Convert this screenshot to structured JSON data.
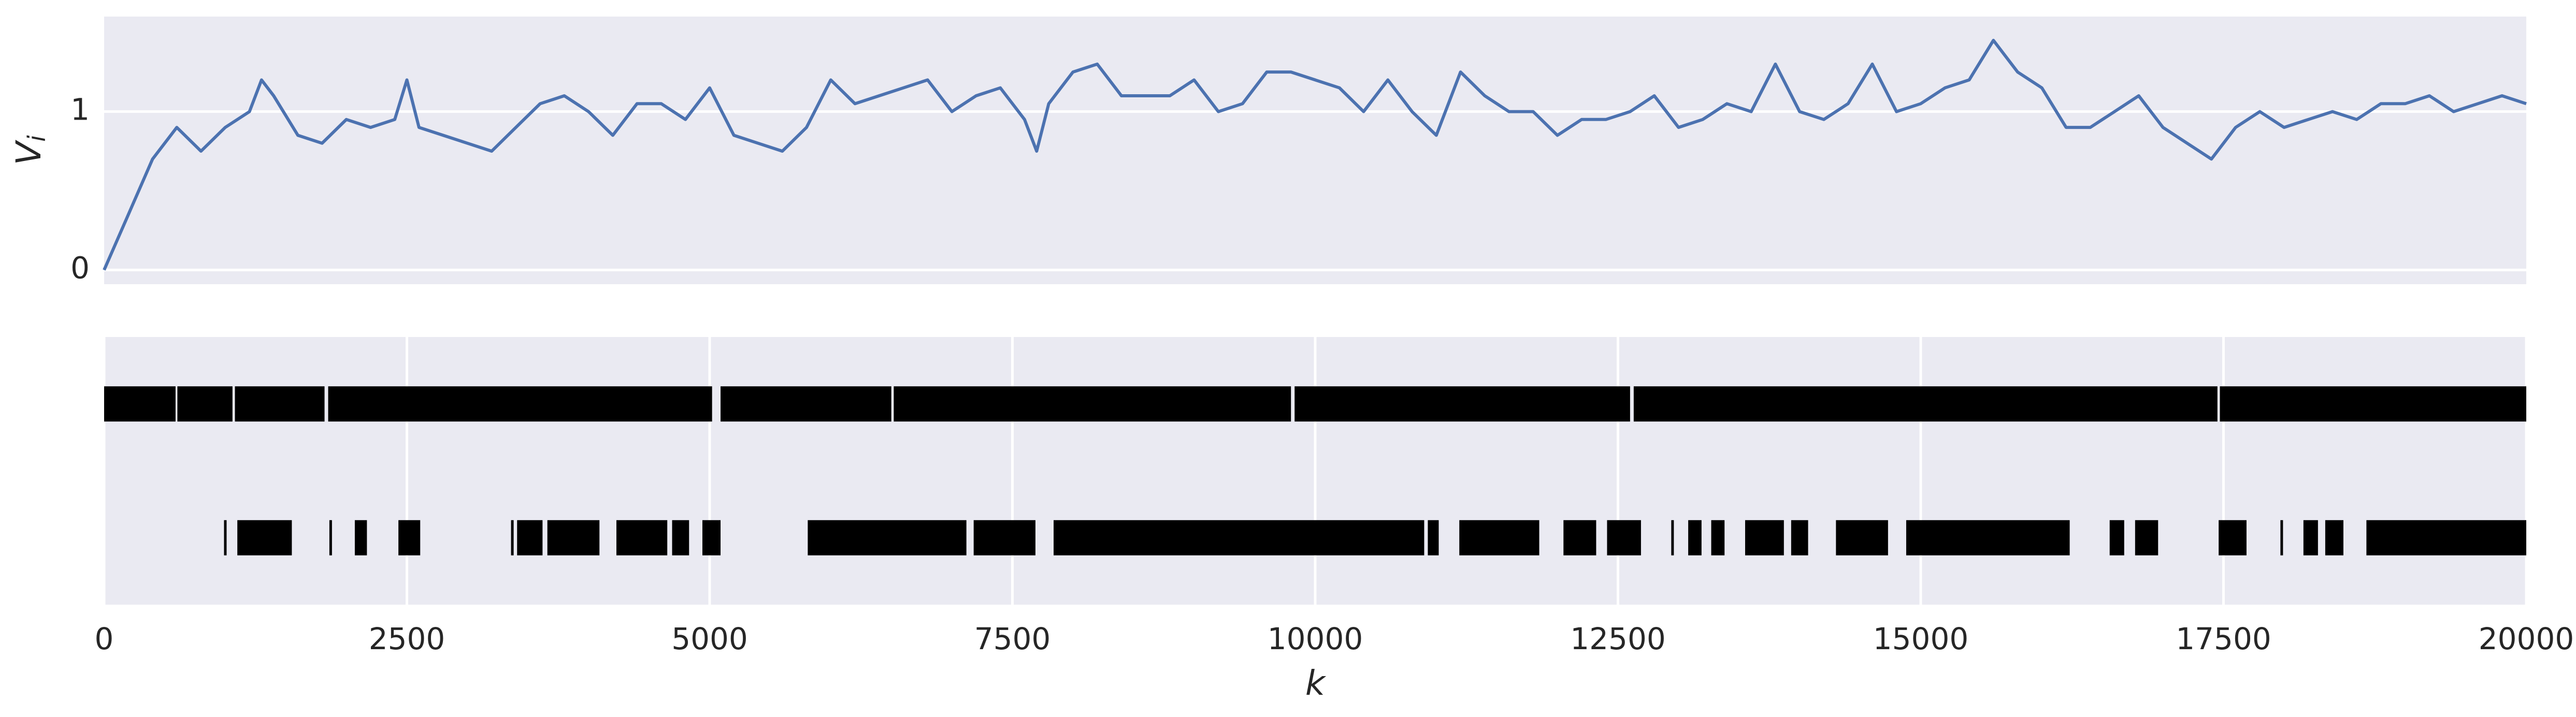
{
  "chart_data": [
    {
      "type": "line",
      "ylabel": "V",
      "ylabel_subscript": "i",
      "color": "#4c72b0",
      "background": "#eaeaf2",
      "xlim": [
        0,
        20000
      ],
      "ylim": [
        -0.09,
        1.6
      ],
      "yticks": [
        0,
        1
      ],
      "grid": true,
      "x": [
        0,
        200,
        400,
        600,
        800,
        1000,
        1200,
        1300,
        1400,
        1600,
        1800,
        2000,
        2200,
        2400,
        2500,
        2600,
        2800,
        3000,
        3200,
        3400,
        3600,
        3800,
        4000,
        4200,
        4400,
        4600,
        4800,
        5000,
        5200,
        5400,
        5600,
        5800,
        6000,
        6200,
        6400,
        6600,
        6800,
        7000,
        7200,
        7400,
        7600,
        7700,
        7800,
        8000,
        8200,
        8400,
        8600,
        8800,
        9000,
        9200,
        9400,
        9600,
        9800,
        10000,
        10200,
        10400,
        10600,
        10800,
        11000,
        11200,
        11400,
        11600,
        11800,
        12000,
        12200,
        12400,
        12600,
        12800,
        13000,
        13200,
        13400,
        13600,
        13800,
        14000,
        14200,
        14400,
        14600,
        14800,
        15000,
        15200,
        15400,
        15600,
        15800,
        16000,
        16200,
        16400,
        16600,
        16800,
        17000,
        17200,
        17400,
        17600,
        17800,
        18000,
        18200,
        18400,
        18600,
        18800,
        19000,
        19200,
        19400,
        19600,
        19800,
        20000
      ],
      "values": [
        0,
        0.35,
        0.7,
        0.9,
        0.75,
        0.9,
        1.0,
        1.2,
        1.1,
        0.85,
        0.8,
        0.95,
        0.9,
        0.95,
        1.2,
        0.9,
        0.85,
        0.8,
        0.75,
        0.9,
        1.05,
        1.1,
        1.0,
        0.85,
        1.05,
        1.05,
        0.95,
        1.15,
        0.85,
        0.8,
        0.75,
        0.9,
        1.2,
        1.05,
        1.1,
        1.15,
        1.2,
        1.0,
        1.1,
        1.15,
        0.95,
        0.75,
        1.05,
        1.25,
        1.3,
        1.1,
        1.1,
        1.1,
        1.2,
        1.0,
        1.05,
        1.25,
        1.25,
        1.2,
        1.15,
        1.0,
        1.2,
        1.0,
        0.85,
        1.25,
        1.1,
        1.0,
        1.0,
        0.85,
        0.95,
        0.95,
        1.0,
        1.1,
        0.9,
        0.95,
        1.05,
        1.0,
        1.3,
        1.0,
        0.95,
        1.05,
        1.3,
        1.0,
        1.05,
        1.15,
        1.2,
        1.45,
        1.25,
        1.15,
        0.9,
        0.9,
        1.0,
        1.1,
        0.9,
        0.8,
        0.7,
        0.9,
        1.0,
        0.9,
        0.95,
        1.0,
        0.95,
        1.05,
        1.05,
        1.1,
        1.0,
        1.05,
        1.1,
        1.05
      ]
    },
    {
      "type": "eventplot",
      "xlabel": "k",
      "color": "#000000",
      "background": "#eaeaf2",
      "xlim": [
        0,
        20000
      ],
      "xticks": [
        0,
        2500,
        5000,
        7500,
        10000,
        12500,
        15000,
        17500,
        20000
      ],
      "grid": true,
      "rows": [
        [
          [
            0,
            590
          ],
          [
            605,
            1060
          ],
          [
            1080,
            1820
          ],
          [
            1850,
            5020
          ],
          [
            5090,
            6500
          ],
          [
            6520,
            9800
          ],
          [
            9830,
            12600
          ],
          [
            12630,
            17450
          ],
          [
            17470,
            20000
          ]
        ],
        [
          [
            990,
            1010
          ],
          [
            1100,
            1550
          ],
          [
            1860,
            1880
          ],
          [
            2070,
            2170
          ],
          [
            2430,
            2610
          ],
          [
            3360,
            3380
          ],
          [
            3410,
            3620
          ],
          [
            3660,
            4090
          ],
          [
            4230,
            4650
          ],
          [
            4690,
            4830
          ],
          [
            4940,
            5090
          ],
          [
            5810,
            7120
          ],
          [
            7180,
            7690
          ],
          [
            7840,
            10900
          ],
          [
            10930,
            11020
          ],
          [
            11190,
            11850
          ],
          [
            12050,
            12320
          ],
          [
            12410,
            12690
          ],
          [
            12940,
            12960
          ],
          [
            13080,
            13190
          ],
          [
            13270,
            13380
          ],
          [
            13550,
            13870
          ],
          [
            13930,
            14070
          ],
          [
            14300,
            14730
          ],
          [
            14880,
            16230
          ],
          [
            16560,
            16680
          ],
          [
            16770,
            16960
          ],
          [
            17460,
            17690
          ],
          [
            17970,
            17990
          ],
          [
            18160,
            18280
          ],
          [
            18340,
            18490
          ],
          [
            18680,
            20000
          ]
        ]
      ]
    }
  ]
}
